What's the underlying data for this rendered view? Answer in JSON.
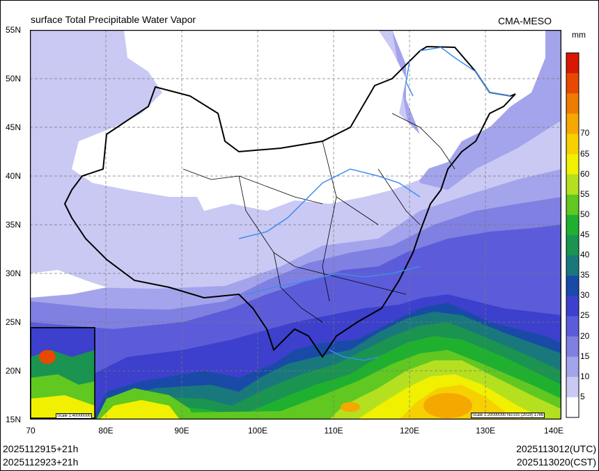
{
  "header": {
    "title": "surface Total Precipitable Water Vapor",
    "source": "CMA-MESO"
  },
  "footer": {
    "run_time_utc": "2025112915+21h",
    "run_time_cst": "2025112923+21h",
    "valid_time_utc": "2025113012(UTC)",
    "valid_time_cst": "2025113020(CST)"
  },
  "axes": {
    "lat_labels": [
      "55N",
      "50N",
      "45N",
      "40N",
      "35N",
      "30N",
      "25N",
      "20N",
      "15N"
    ],
    "lon_labels": [
      "70",
      "80E",
      "90E",
      "100E",
      "110E",
      "120E",
      "130E",
      "140E"
    ]
  },
  "colorbar": {
    "unit": "mm",
    "levels": [
      "5",
      "10",
      "15",
      "20",
      "25",
      "30",
      "35",
      "40",
      "45",
      "50",
      "55",
      "60",
      "65",
      "70"
    ],
    "colors": [
      "#ffffff",
      "#c9c9f4",
      "#a4a4ec",
      "#8080e2",
      "#5c5cda",
      "#3c40cc",
      "#1a4aa8",
      "#19787c",
      "#1a9450",
      "#20b030",
      "#60c820",
      "#b4e020",
      "#f0f000",
      "#f6d000",
      "#f4a800",
      "#ee7c00",
      "#e84800",
      "#d81800"
    ]
  },
  "map": {
    "scale_main": "Scale 1:20000000 No:GS (2019) 1786",
    "scale_inset": "Scale 1:40000000"
  }
}
